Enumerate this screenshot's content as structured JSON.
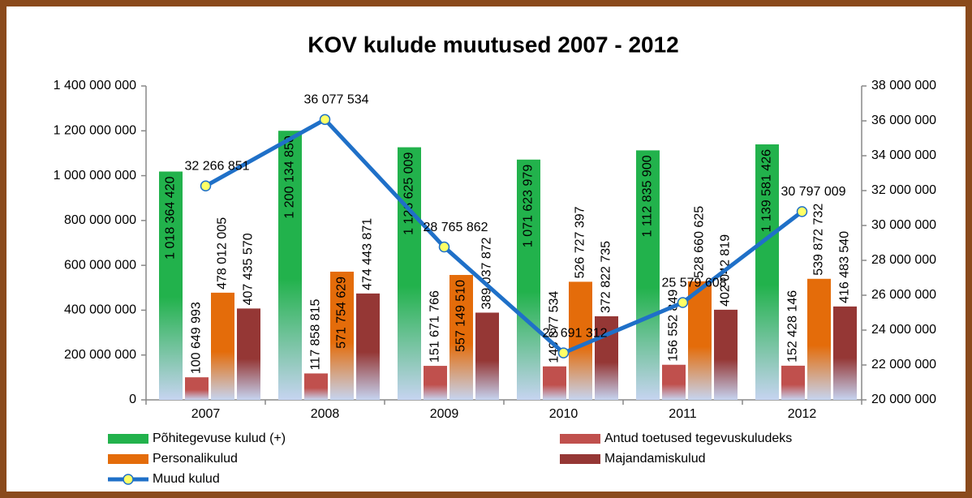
{
  "chart_data": {
    "type": "bar",
    "title": "KOV kulude muutused 2007 - 2012",
    "categories": [
      "2007",
      "2008",
      "2009",
      "2010",
      "2011",
      "2012"
    ],
    "ylim": [
      0,
      1400000000
    ],
    "yticks": [
      0,
      {
        "value": 200000000,
        "label": "200 000 000"
      },
      {
        "value": 400000000,
        "label": "400 000 000"
      },
      {
        "value": 600000000,
        "label": "600 000 000"
      },
      {
        "value": 800000000,
        "label": "800 000 000"
      },
      {
        "value": 1000000000,
        "label": "1 000 000 000"
      },
      {
        "value": 1200000000,
        "label": "1 200 000 000"
      },
      {
        "value": 1400000000,
        "label": "1 400 000 000"
      }
    ],
    "y2lim": [
      20000000,
      38000000
    ],
    "y2ticks": [
      {
        "value": 20000000,
        "label": "20 000 000"
      },
      {
        "value": 22000000,
        "label": "22 000 000"
      },
      {
        "value": 24000000,
        "label": "24 000 000"
      },
      {
        "value": 26000000,
        "label": "26 000 000"
      },
      {
        "value": 28000000,
        "label": "28 000 000"
      },
      {
        "value": 30000000,
        "label": "30 000 000"
      },
      {
        "value": 32000000,
        "label": "32 000 000"
      },
      {
        "value": 34000000,
        "label": "34 000 000"
      },
      {
        "value": 36000000,
        "label": "36 000 000"
      },
      {
        "value": 38000000,
        "label": "38 000 000"
      }
    ],
    "series": [
      {
        "name": "Põhitegevuse kulud (+)",
        "color": "#22b24c",
        "type": "bar",
        "values": [
          1018364420,
          1200134850,
          1126625009,
          1071623979,
          1112835900,
          1139581426
        ],
        "value_labels": [
          "1 018 364 420",
          "1 200 134 850",
          "1 126 625 009",
          "1 071 623 979",
          "1 112 835 900",
          "1 139 581 426"
        ]
      },
      {
        "name": "Antud toetused tegevuskuludeks",
        "color": "#c0504d",
        "type": "bar",
        "values": [
          100649993,
          117858815,
          151671766,
          149377534,
          156552849,
          152428146
        ],
        "value_labels": [
          "100 649 993",
          "117 858 815",
          "151 671 766",
          "149 377 534",
          "156 552 849",
          "152 428 146"
        ]
      },
      {
        "name": "Personalikulud",
        "color": "#e46c0a",
        "type": "bar",
        "values": [
          478012005,
          571754629,
          557149510,
          526727397,
          528660625,
          539872732
        ],
        "value_labels": [
          "478 012 005",
          "571 754 629",
          "557 149 510",
          "526 727 397",
          "528 660 625",
          "539 872 732"
        ]
      },
      {
        "name": "Majandamiskulud",
        "color": "#953735",
        "type": "bar",
        "values": [
          407435570,
          474443871,
          389037872,
          372822735,
          402042819,
          416483540
        ],
        "value_labels": [
          "407 435 570",
          "474 443 871",
          "389 037 872",
          "372 822 735",
          "402 042 819",
          "416 483 540"
        ]
      },
      {
        "name": "Muud kulud",
        "color": "#1f70c8",
        "type": "line",
        "axis": "y2",
        "marker_color": "#ffff66",
        "values": [
          32266851,
          36077534,
          28765862,
          22691312,
          25579608,
          30797009
        ],
        "value_labels": [
          "32 266 851",
          "36 077 534",
          "28 765 862",
          "22 691 312",
          "25 579 608",
          "30 797 009"
        ]
      }
    ]
  }
}
